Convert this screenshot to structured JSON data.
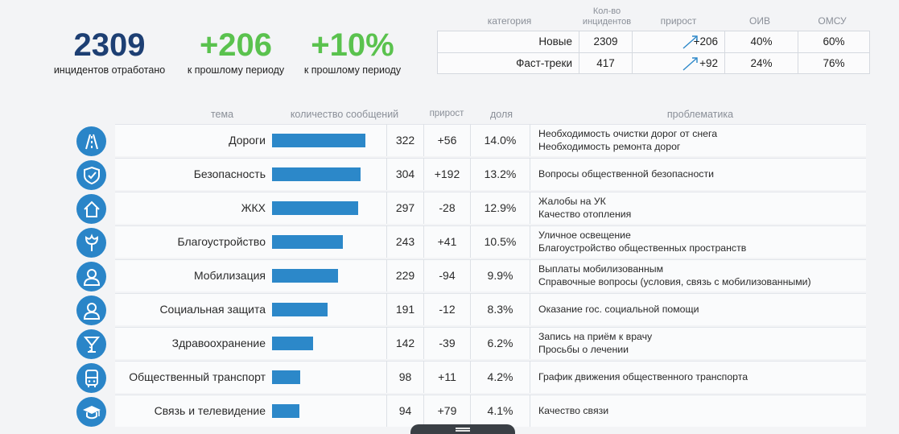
{
  "kpis": [
    {
      "value": "2309",
      "caption": "инцидентов отработано"
    },
    {
      "value": "+206",
      "caption": "к прошлому периоду"
    },
    {
      "value": "+10%",
      "caption": "к прошлому периоду"
    }
  ],
  "categories": {
    "headers": {
      "category": "категория",
      "count": "Кол-во инцидентов",
      "growth": "прирост",
      "oiv": "ОИВ",
      "omsu": "ОМСУ"
    },
    "rows": [
      {
        "name": "Новые",
        "count": "2309",
        "growth": "+206",
        "oiv": "40%",
        "omsu": "60%"
      },
      {
        "name": "Фаст-треки",
        "count": "417",
        "growth": "+92",
        "oiv": "24%",
        "omsu": "76%"
      }
    ]
  },
  "main": {
    "headers": {
      "topic": "тема",
      "messages": "количество сообщений",
      "growth": "прирост",
      "share": "доля",
      "problems": "проблематика"
    },
    "rows": [
      {
        "icon": "roads-icon",
        "topic": "Дороги",
        "count": "322",
        "growth": "+56",
        "share": "14.0%",
        "value": 322,
        "problems": [
          "Необходимость очистки дорог от снега",
          "Необходимость ремонта дорог"
        ]
      },
      {
        "icon": "shield-check-icon",
        "topic": "Безопасность",
        "count": "304",
        "growth": "+192",
        "share": "13.2%",
        "value": 304,
        "problems": [
          "Вопросы общественной безопасности"
        ]
      },
      {
        "icon": "house-icon",
        "topic": "ЖКХ",
        "count": "297",
        "growth": "-28",
        "share": "12.9%",
        "value": 297,
        "problems": [
          "Жалобы на УК",
          "Качество отопления"
        ]
      },
      {
        "icon": "flower-icon",
        "topic": "Благоустройство",
        "count": "243",
        "growth": "+41",
        "share": "10.5%",
        "value": 243,
        "problems": [
          "Уличное освещение",
          "Благоустройство общественных пространств"
        ]
      },
      {
        "icon": "person-icon",
        "topic": "Мобилизация",
        "count": "229",
        "growth": "-94",
        "share": "9.9%",
        "value": 229,
        "problems": [
          "Выплаты мобилизованным",
          "Справочные вопросы (условия, связь с мобилизованными)"
        ]
      },
      {
        "icon": "person-icon",
        "topic": "Социальная защита",
        "count": "191",
        "growth": "-12",
        "share": "8.3%",
        "value": 191,
        "problems": [
          "Оказание гос. социальной помощи"
        ]
      },
      {
        "icon": "medical-icon",
        "topic": "Здравоохранение",
        "count": "142",
        "growth": "-39",
        "share": "6.2%",
        "value": 142,
        "problems": [
          "Запись на приём к врачу",
          "Просьбы о лечении"
        ]
      },
      {
        "icon": "bus-icon",
        "topic": "Общественный транспорт",
        "count": "98",
        "growth": "+11",
        "share": "4.2%",
        "value": 98,
        "problems": [
          "График движения общественного транспорта"
        ]
      },
      {
        "icon": "graduation-cap-icon",
        "topic": "Связь и телевидение",
        "count": "94",
        "growth": "+79",
        "share": "4.1%",
        "value": 94,
        "problems": [
          "Качество связи"
        ]
      }
    ]
  },
  "colors": {
    "accent": "#2c88c9",
    "kpi_primary": "#1d3f73",
    "kpi_positive": "#5ac24e"
  }
}
